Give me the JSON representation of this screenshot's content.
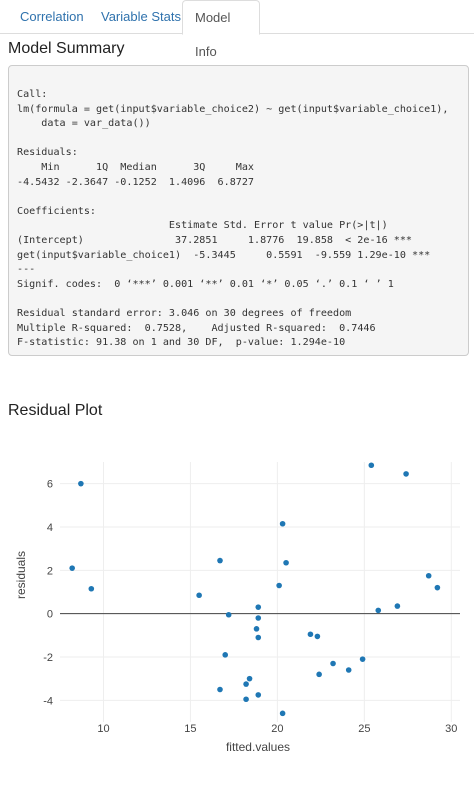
{
  "tabs": [
    {
      "label": "Correlation",
      "active": false
    },
    {
      "label": "Variable Stats",
      "active": false
    },
    {
      "label": "Model Info",
      "active": true
    }
  ],
  "model_summary": {
    "heading": "Model Summary",
    "lines": [
      "Call:",
      "lm(formula = get(input$variable_choice2) ~ get(input$variable_choice1),",
      "    data = var_data())",
      "",
      "Residuals:",
      "    Min      1Q  Median      3Q     Max ",
      "-4.5432 -2.3647 -0.1252  1.4096  6.8727 ",
      "",
      "Coefficients:",
      "                         Estimate Std. Error t value Pr(>|t|)    ",
      "(Intercept)               37.2851     1.8776  19.858  < 2e-16 ***",
      "get(input$variable_choice1)  -5.3445     0.5591  -9.559 1.29e-10 ***",
      "---",
      "Signif. codes:  0 ‘***’ 0.001 ‘**’ 0.01 ‘*’ 0.05 ‘.’ 0.1 ‘ ’ 1",
      "",
      "Residual standard error: 3.046 on 30 degrees of freedom",
      "Multiple R-squared:  0.7528,\tAdjusted R-squared:  0.7446 ",
      "F-statistic: 91.38 on 1 and 30 DF,  p-value: 1.294e-10"
    ]
  },
  "residual_plot": {
    "heading": "Residual Plot"
  },
  "chart_data": {
    "type": "scatter",
    "title": "",
    "xlabel": "fitted.values",
    "ylabel": "residuals",
    "xlim": [
      7.5,
      30.5
    ],
    "ylim": [
      -5.0,
      7.0
    ],
    "xticks": [
      10,
      15,
      20,
      25,
      30
    ],
    "yticks": [
      -4,
      -2,
      0,
      2,
      4,
      6
    ],
    "grid": true,
    "zero_line": true,
    "point_color": "#1f77b4",
    "points": [
      {
        "x": 8.2,
        "y": 2.1
      },
      {
        "x": 8.7,
        "y": 6.0
      },
      {
        "x": 9.3,
        "y": 1.15
      },
      {
        "x": 15.5,
        "y": 0.85
      },
      {
        "x": 16.7,
        "y": 2.45
      },
      {
        "x": 16.7,
        "y": -3.5
      },
      {
        "x": 17.0,
        "y": -1.9
      },
      {
        "x": 17.2,
        "y": -0.05
      },
      {
        "x": 18.2,
        "y": -3.25
      },
      {
        "x": 18.2,
        "y": -3.95
      },
      {
        "x": 18.4,
        "y": -3.0
      },
      {
        "x": 18.8,
        "y": -0.7
      },
      {
        "x": 18.9,
        "y": 0.3
      },
      {
        "x": 18.9,
        "y": -0.2
      },
      {
        "x": 18.9,
        "y": -1.1
      },
      {
        "x": 18.9,
        "y": -3.75
      },
      {
        "x": 20.1,
        "y": 1.3
      },
      {
        "x": 20.3,
        "y": 4.15
      },
      {
        "x": 20.3,
        "y": -4.6
      },
      {
        "x": 20.5,
        "y": 2.35
      },
      {
        "x": 21.9,
        "y": -0.95
      },
      {
        "x": 22.3,
        "y": -1.05
      },
      {
        "x": 22.4,
        "y": -2.8
      },
      {
        "x": 23.2,
        "y": -2.3
      },
      {
        "x": 24.1,
        "y": -2.6
      },
      {
        "x": 24.9,
        "y": -2.1
      },
      {
        "x": 25.4,
        "y": 6.85
      },
      {
        "x": 25.8,
        "y": 0.15
      },
      {
        "x": 26.9,
        "y": 0.35
      },
      {
        "x": 27.4,
        "y": 6.45
      },
      {
        "x": 28.7,
        "y": 1.75
      },
      {
        "x": 29.2,
        "y": 1.2
      }
    ]
  }
}
